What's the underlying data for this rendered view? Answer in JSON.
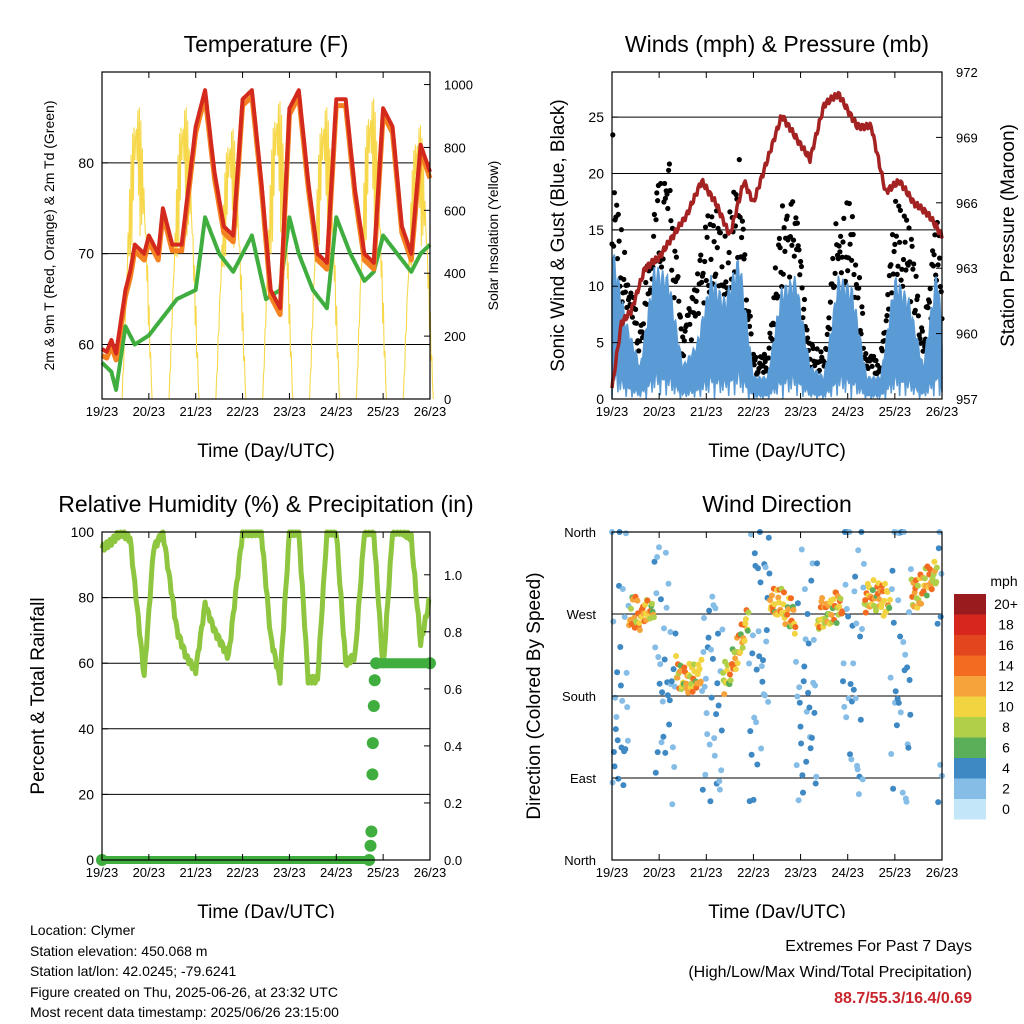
{
  "time_ticks": [
    "19/23",
    "20/23",
    "21/23",
    "22/23",
    "23/23",
    "24/23",
    "25/23",
    "26/23"
  ],
  "colors": {
    "temp_2m": "#d42a1e",
    "temp_9m": "#f58220",
    "dewpoint": "#3fae3f",
    "solar": "#f7d84a",
    "wind": "#5b9bd5",
    "gust": "#000000",
    "pressure": "#a52222",
    "rh": "#8ec63f",
    "precip": "#3fae3f",
    "extremes": "#c8262c"
  },
  "chart_data": [
    {
      "type": "line",
      "title": "Temperature (F)",
      "xlabel": "Time (Day/UTC)",
      "ylabel": "2m & 9m T (Red, Orange) & 2m Td (Green)",
      "y2label": "Solar Insolation (Yellow)",
      "ylim": [
        54,
        90
      ],
      "yticks": [
        60,
        70,
        80
      ],
      "y2lim": [
        0,
        1040
      ],
      "y2ticks": [
        0,
        200,
        400,
        600,
        800,
        1000
      ],
      "grid": true,
      "series": [
        {
          "name": "2m T",
          "x": [
            0,
            0.1,
            0.2,
            0.3,
            0.5,
            0.6,
            0.7,
            0.9,
            1,
            1.2,
            1.3,
            1.5,
            1.7,
            2,
            2.2,
            2.4,
            2.6,
            2.8,
            3,
            3.2,
            3.4,
            3.6,
            3.8,
            4,
            4.2,
            4.4,
            4.6,
            4.8,
            5,
            5.2,
            5.4,
            5.6,
            5.8,
            6,
            6.2,
            6.4,
            6.6,
            6.8,
            7
          ],
          "values": [
            59.5,
            59.2,
            60.5,
            59,
            66,
            68,
            71,
            70,
            72,
            70,
            75,
            71,
            71,
            84,
            88,
            79,
            73,
            72,
            87,
            88,
            78,
            66,
            64,
            86,
            88,
            78,
            70,
            69,
            87,
            87,
            77,
            70,
            69,
            86,
            84,
            73,
            70,
            82,
            79
          ]
        },
        {
          "name": "2m Td",
          "x": [
            0,
            0.1,
            0.2,
            0.3,
            0.5,
            0.7,
            1,
            1.3,
            1.6,
            2,
            2.2,
            2.5,
            2.8,
            3.2,
            3.5,
            3.8,
            4,
            4.2,
            4.5,
            4.8,
            5,
            5.3,
            5.6,
            5.8,
            6,
            6.3,
            6.6,
            6.8,
            7
          ],
          "values": [
            58,
            57.5,
            57,
            55,
            62,
            60,
            61,
            63,
            65,
            66,
            74,
            70,
            68,
            72,
            65,
            66,
            74,
            70,
            66,
            64,
            74,
            70,
            67,
            68,
            72,
            70,
            68,
            70,
            71
          ]
        },
        {
          "name": "Solar",
          "peaks_at_day": [
            0.75,
            1.75,
            2.75,
            3.75,
            4.75,
            5.75,
            6.75
          ],
          "peak_values": [
            960,
            960,
            890,
            980,
            960,
            990,
            900
          ]
        }
      ]
    },
    {
      "type": "line",
      "title": "Winds (mph) & Pressure (mb)",
      "xlabel": "Time (Day/UTC)",
      "ylabel": "Sonic Wind & Gust (Blue, Black)",
      "y2label": "Station Pressure (Maroon)",
      "ylim": [
        0,
        29
      ],
      "yticks": [
        0,
        5,
        10,
        15,
        20,
        25
      ],
      "y2lim": [
        957,
        972
      ],
      "y2ticks": [
        957,
        960,
        963,
        966,
        969,
        972
      ],
      "grid": true,
      "series": [
        {
          "name": "Wind",
          "x": [
            0,
            0.3,
            0.6,
            0.9,
            1.2,
            1.5,
            1.8,
            2.1,
            2.4,
            2.7,
            3,
            3.3,
            3.6,
            3.9,
            4.2,
            4.5,
            4.8,
            5.1,
            5.4,
            5.7,
            6,
            6.3,
            6.6,
            6.9,
            7
          ],
          "values": [
            14,
            7,
            3,
            12,
            11,
            3,
            5,
            11,
            9,
            13,
            2,
            2,
            10,
            11,
            3,
            2,
            11,
            10,
            2,
            2,
            11,
            9,
            3,
            12,
            6
          ]
        },
        {
          "name": "Gust",
          "x": [
            0,
            0.3,
            0.6,
            0.9,
            1.2,
            1.5,
            1.8,
            2.1,
            2.4,
            2.7,
            3,
            3.3,
            3.6,
            3.9,
            4.2,
            4.5,
            4.8,
            5.1,
            5.4,
            5.7,
            6,
            6.3,
            6.6,
            6.9,
            7
          ],
          "values": [
            25,
            12,
            6,
            20,
            22,
            6,
            11,
            18,
            15,
            22,
            4,
            4,
            18,
            19,
            5,
            4,
            19,
            18,
            4,
            4,
            19,
            16,
            6,
            18,
            10
          ]
        },
        {
          "name": "Pressure",
          "x": [
            0,
            0.2,
            0.4,
            0.7,
            1,
            1.3,
            1.6,
            1.9,
            2.2,
            2.5,
            2.8,
            3,
            3.3,
            3.6,
            3.9,
            4.2,
            4.5,
            4.8,
            5.2,
            5.5,
            5.8,
            6.1,
            6.4,
            6.7,
            7
          ],
          "values": [
            957.5,
            960.5,
            961,
            963,
            963.5,
            964.5,
            965.5,
            967,
            966,
            964.5,
            967,
            966,
            968,
            970,
            969,
            968,
            970.5,
            971,
            969.5,
            969.5,
            966.5,
            967,
            966,
            965.5,
            964.5
          ]
        }
      ]
    },
    {
      "type": "line",
      "title": "Relative Humidity (%) & Precipitation (in)",
      "xlabel": "Time (Day/UTC)",
      "ylabel": "Percent & Total Rainfall",
      "ylim": [
        0,
        100
      ],
      "yticks": [
        0,
        20,
        40,
        60,
        80,
        100
      ],
      "y2lim": [
        0,
        1.15
      ],
      "y2ticks": [
        0.0,
        0.2,
        0.4,
        0.6,
        0.8,
        1.0
      ],
      "grid": true,
      "series": [
        {
          "name": "RH",
          "x": [
            0,
            0.2,
            0.4,
            0.6,
            0.9,
            1.1,
            1.3,
            1.6,
            1.8,
            2,
            2.2,
            2.4,
            2.7,
            3,
            3.2,
            3.4,
            3.6,
            3.8,
            4,
            4.2,
            4.4,
            4.6,
            4.8,
            5,
            5.2,
            5.4,
            5.6,
            5.8,
            6,
            6.2,
            6.4,
            6.6,
            6.8,
            7
          ],
          "values": [
            95,
            97,
            100,
            98,
            56,
            95,
            100,
            70,
            62,
            58,
            78,
            70,
            62,
            100,
            100,
            100,
            68,
            55,
            100,
            100,
            55,
            55,
            100,
            100,
            60,
            62,
            100,
            100,
            58,
            100,
            100,
            98,
            66,
            80
          ]
        },
        {
          "name": "Precip",
          "x": [
            0,
            5.7,
            5.73,
            5.75,
            5.77,
            5.78,
            5.8,
            5.82,
            5.85,
            7
          ],
          "values": [
            0,
            0,
            0.05,
            0.1,
            0.3,
            0.41,
            0.54,
            0.63,
            0.69,
            0.69
          ]
        }
      ]
    },
    {
      "type": "scatter",
      "title": "Wind Direction",
      "xlabel": "Time (Day/UTC)",
      "ylabel": "Direction (Colored By Speed)",
      "ytick_labels": [
        "North",
        "East",
        "South",
        "West",
        "North"
      ],
      "legend": {
        "title": "mph",
        "labels": [
          "20+",
          "18",
          "16",
          "14",
          "12",
          "10",
          "8",
          "6",
          "4",
          "2",
          "0"
        ],
        "colors": [
          "#991b1e",
          "#d7261e",
          "#e3461f",
          "#f26b21",
          "#f6a33c",
          "#f2d340",
          "#b0d04a",
          "#5aaf58",
          "#3e88c3",
          "#86bde6",
          "#c3e6f8"
        ]
      },
      "series": [
        {
          "name": "Direction",
          "x": [
            0.1,
            0.3,
            0.6,
            0.9,
            1.5,
            1.8,
            2,
            2.2,
            2.5,
            2.8,
            3.3,
            3.6,
            3.9,
            4,
            4.3,
            4.6,
            4.9,
            5.2,
            5.6,
            6,
            6.2,
            6.4,
            6.7,
            7
          ],
          "values": [
            280,
            275,
            270,
            275,
            195,
            205,
            200,
            190,
            205,
            255,
            280,
            280,
            265,
            240,
            270,
            275,
            280,
            285,
            290,
            280,
            300,
            290,
            305,
            320
          ]
        }
      ]
    }
  ],
  "info": {
    "location": "Location: Clymer",
    "elevation": "Station elevation: 450.068 m",
    "latlon": "Station lat/lon: 42.0245; -79.6241",
    "created": "Figure created on Thu, 2025-06-26, at 23:32 UTC",
    "recent": "Most recent data timestamp: 2025/06/26 23:15:00"
  },
  "extremes": {
    "title": "Extremes For Past 7 Days",
    "subtitle": "(High/Low/Max Wind/Total Precipitation)",
    "values": "88.7/55.3/16.4/0.69"
  }
}
